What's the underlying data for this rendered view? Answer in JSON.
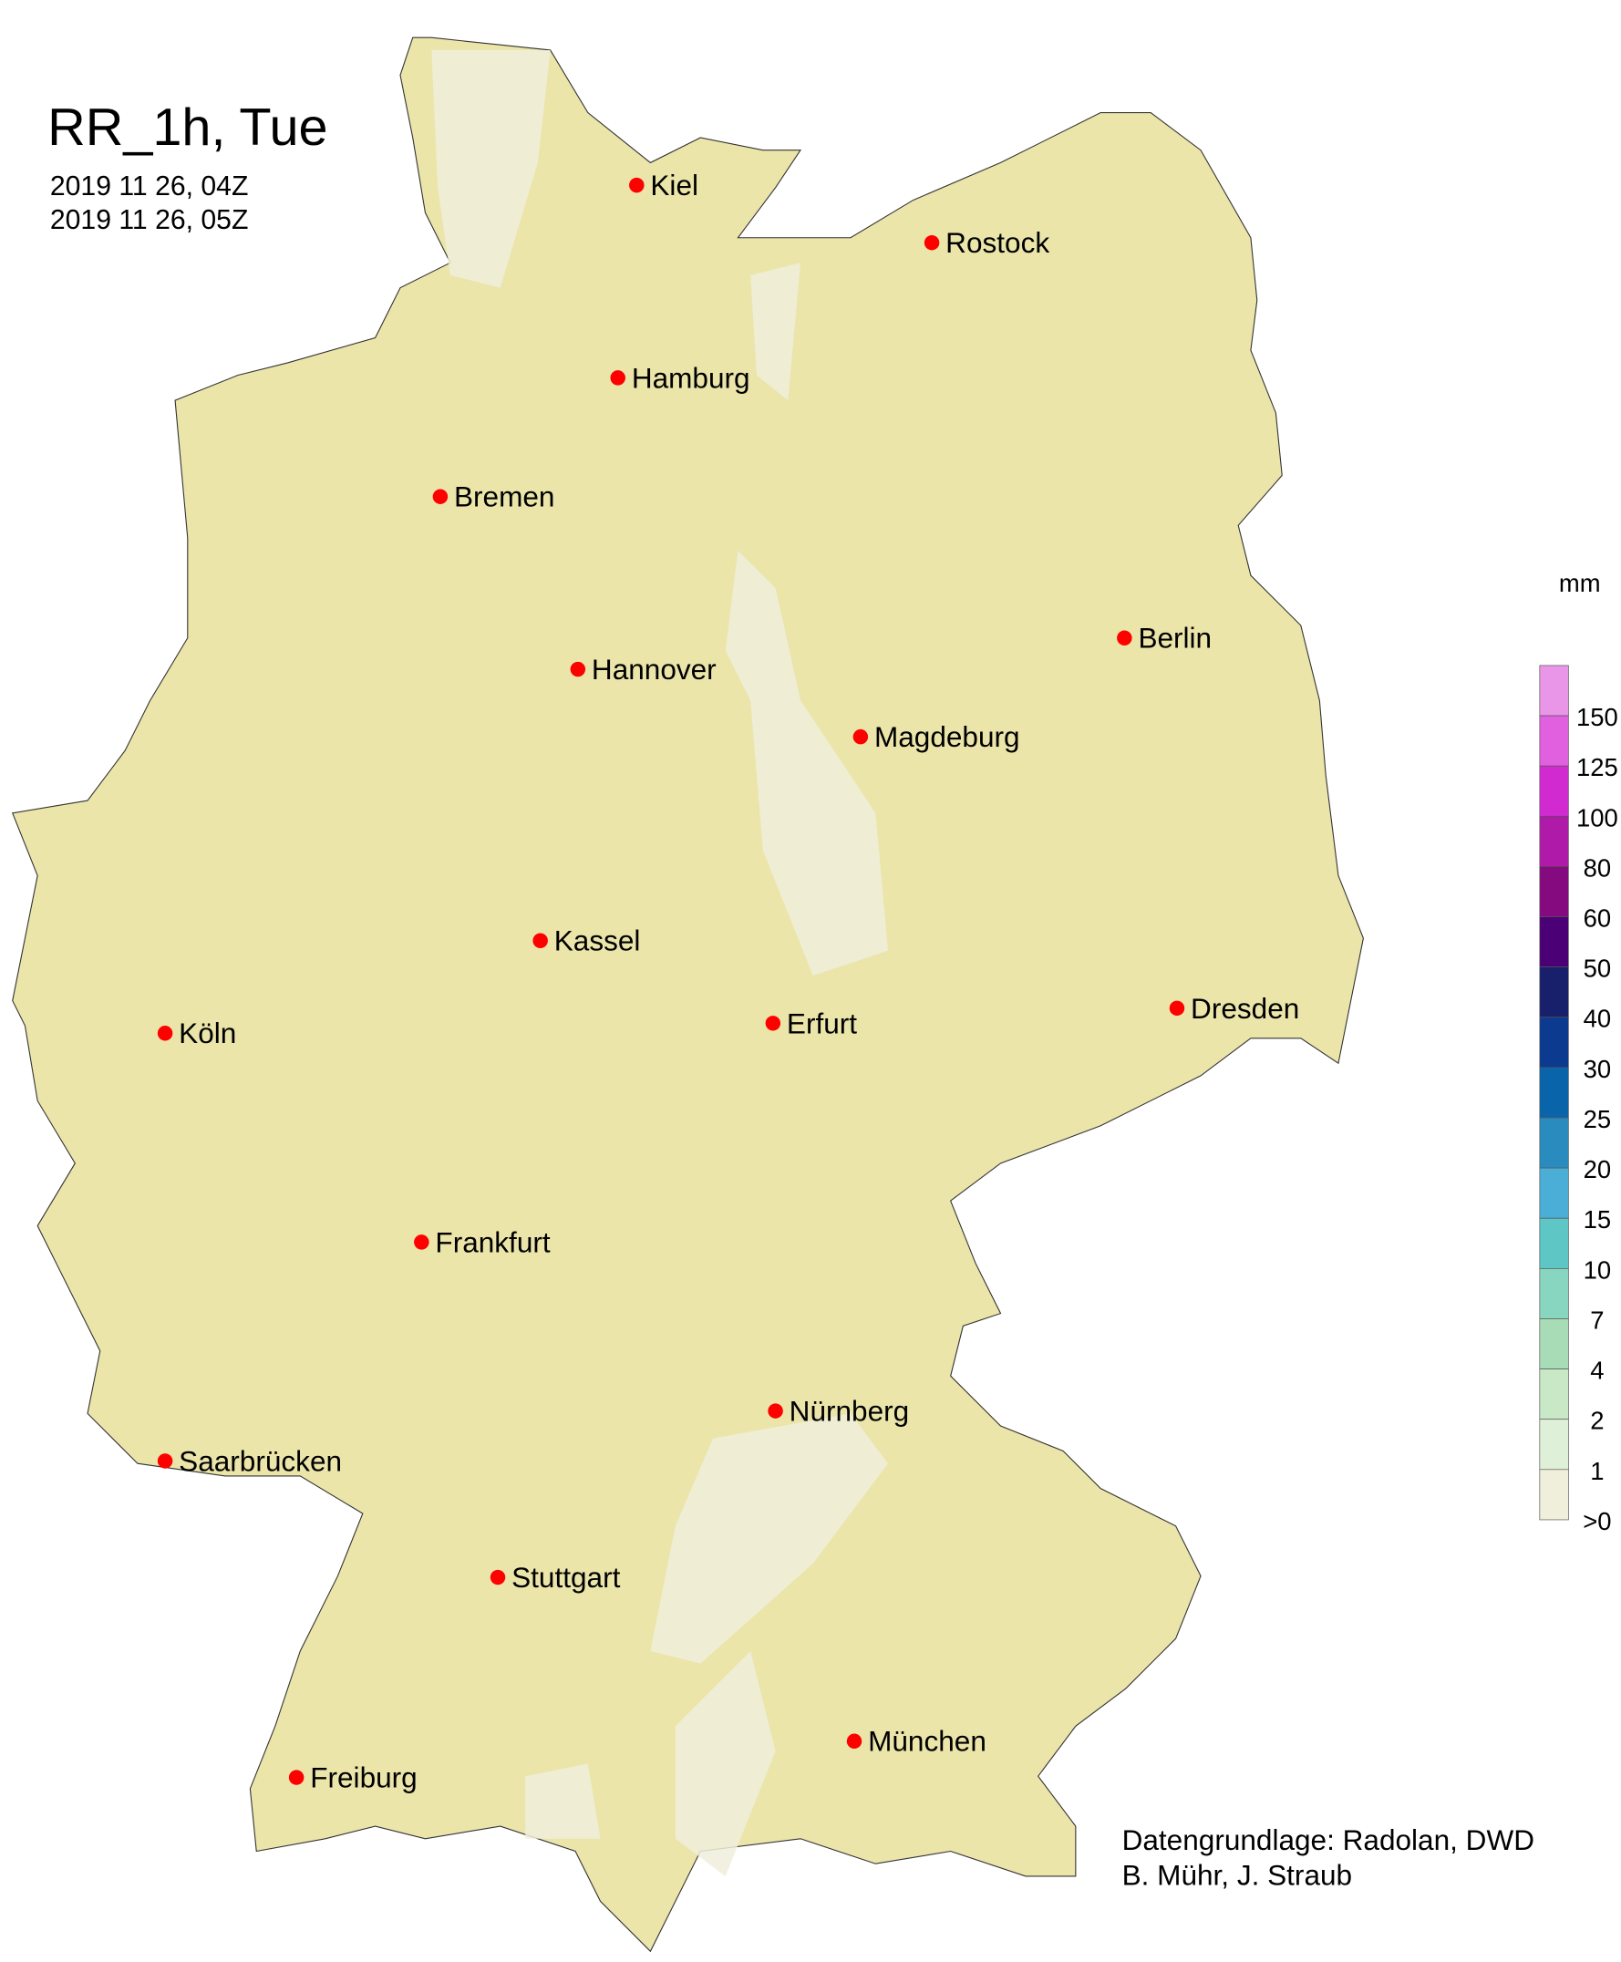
{
  "title": "RR_1h, Tue",
  "period_start": "2019 11 26, 04Z",
  "period_end": "2019 11 26, 05Z",
  "land_color": "#ebe5aa",
  "light_rain_color": "#f0efdc",
  "city_marker_color": "#ff0000",
  "cities": [
    "Kiel",
    "Rostock",
    "Hamburg",
    "Bremen",
    "Berlin",
    "Hannover",
    "Magdeburg",
    "Kassel",
    "Dresden",
    "Köln",
    "Erfurt",
    "Frankfurt",
    "Nürnberg",
    "Saarbrücken",
    "Stuttgart",
    "München",
    "Freiburg"
  ],
  "legend": {
    "unit": "mm",
    "colors": [
      "#e996e9",
      "#e060e0",
      "#d12ad1",
      "#b01aa8",
      "#850a80",
      "#4b0075",
      "#18206c",
      "#0c3a8e",
      "#0a64aa",
      "#2a8cbe",
      "#4aaed6",
      "#5ec6c4",
      "#88d6c0",
      "#a8dcb6",
      "#c8e8c6",
      "#dff0d8",
      "#f0efdc"
    ],
    "labels": [
      "150",
      "125",
      "100",
      "80",
      "60",
      "50",
      "40",
      "30",
      "25",
      "20",
      "15",
      "10",
      "7",
      "4",
      "2",
      "1",
      ">0"
    ]
  },
  "credit_line1": "Datengrundlage: Radolan, DWD",
  "credit_line2": "B. Mühr, J. Straub"
}
